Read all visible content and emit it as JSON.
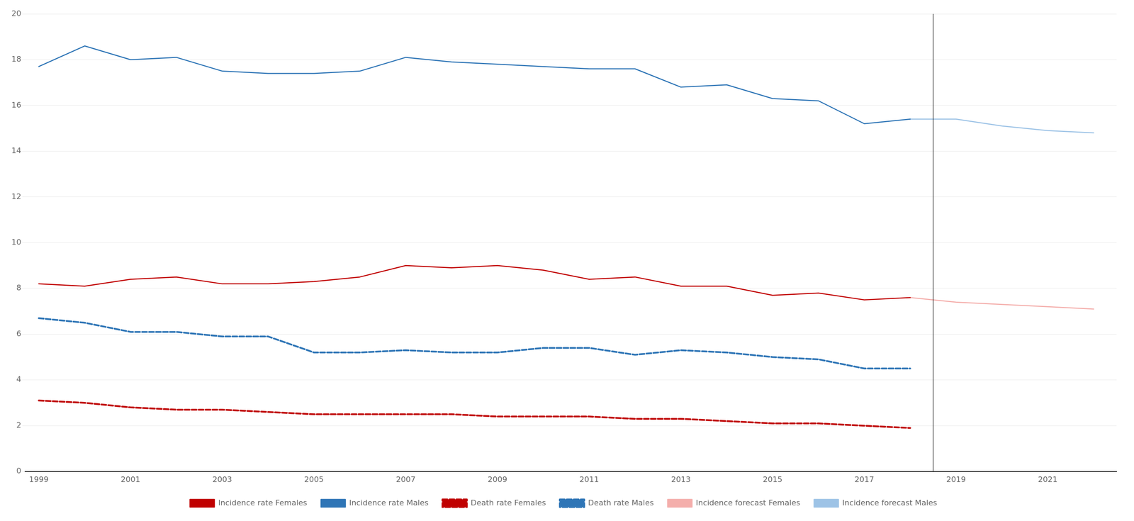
{
  "chart_data": {
    "type": "line",
    "series": [
      {
        "name": "Incidence rate Females",
        "color": "#C00000",
        "line_style": "solid",
        "x": [
          1999,
          2000,
          2001,
          2002,
          2003,
          2004,
          2005,
          2006,
          2007,
          2008,
          2009,
          2010,
          2011,
          2012,
          2013,
          2014,
          2015,
          2016,
          2017,
          2018
        ],
        "values": [
          8.2,
          8.1,
          8.4,
          8.5,
          8.2,
          8.2,
          8.3,
          8.5,
          9.0,
          8.9,
          9.0,
          8.8,
          8.4,
          8.5,
          8.1,
          8.1,
          7.7,
          7.8,
          7.5,
          7.6
        ]
      },
      {
        "name": "Incidence rate Males",
        "color": "#2E75B6",
        "line_style": "solid",
        "x": [
          1999,
          2000,
          2001,
          2002,
          2003,
          2004,
          2005,
          2006,
          2007,
          2008,
          2009,
          2010,
          2011,
          2012,
          2013,
          2014,
          2015,
          2016,
          2017,
          2018
        ],
        "values": [
          17.7,
          18.6,
          18.0,
          18.1,
          17.5,
          17.4,
          17.4,
          17.5,
          18.1,
          17.9,
          17.8,
          17.7,
          17.6,
          17.6,
          16.8,
          16.9,
          16.3,
          16.2,
          15.2,
          15.4
        ]
      },
      {
        "name": "Death rate Females",
        "color": "#C00000",
        "line_style": "dashed",
        "x": [
          1999,
          2000,
          2001,
          2002,
          2003,
          2004,
          2005,
          2006,
          2007,
          2008,
          2009,
          2010,
          2011,
          2012,
          2013,
          2014,
          2015,
          2016,
          2017,
          2018
        ],
        "values": [
          3.1,
          3.0,
          2.8,
          2.7,
          2.7,
          2.6,
          2.5,
          2.5,
          2.5,
          2.5,
          2.4,
          2.4,
          2.4,
          2.3,
          2.3,
          2.2,
          2.1,
          2.1,
          2.0,
          1.9
        ]
      },
      {
        "name": "Death rate Males",
        "color": "#2E75B6",
        "line_style": "dashed",
        "x": [
          1999,
          2000,
          2001,
          2002,
          2003,
          2004,
          2005,
          2006,
          2007,
          2008,
          2009,
          2010,
          2011,
          2012,
          2013,
          2014,
          2015,
          2016,
          2017,
          2018
        ],
        "values": [
          6.7,
          6.5,
          6.1,
          6.1,
          5.9,
          5.9,
          5.2,
          5.2,
          5.3,
          5.2,
          5.2,
          5.4,
          5.4,
          5.1,
          5.3,
          5.2,
          5.0,
          4.9,
          4.5,
          4.5
        ]
      },
      {
        "name": "Incidence forecast Females",
        "color": "#F4AEAB",
        "line_style": "solid",
        "x": [
          2018,
          2019,
          2020,
          2021,
          2022
        ],
        "values": [
          7.6,
          7.4,
          7.3,
          7.2,
          7.1
        ]
      },
      {
        "name": "Incidence forecast Males",
        "color": "#9DC3E6",
        "line_style": "solid",
        "x": [
          2018,
          2019,
          2020,
          2021,
          2022
        ],
        "values": [
          15.4,
          15.4,
          15.1,
          14.9,
          14.8
        ]
      }
    ],
    "annotations": [
      {
        "x": 2018.5
      }
    ],
    "xlim": [
      1998.7,
      2022.5
    ],
    "xticks": [
      1999,
      2001,
      2003,
      2005,
      2007,
      2009,
      2011,
      2013,
      2015,
      2017,
      2019,
      2021
    ],
    "ylim": [
      0,
      20
    ],
    "yticks": [
      0,
      2,
      4,
      6,
      8,
      10,
      12,
      14,
      16,
      18,
      20
    ],
    "grid": "y",
    "legend": "bottom"
  }
}
